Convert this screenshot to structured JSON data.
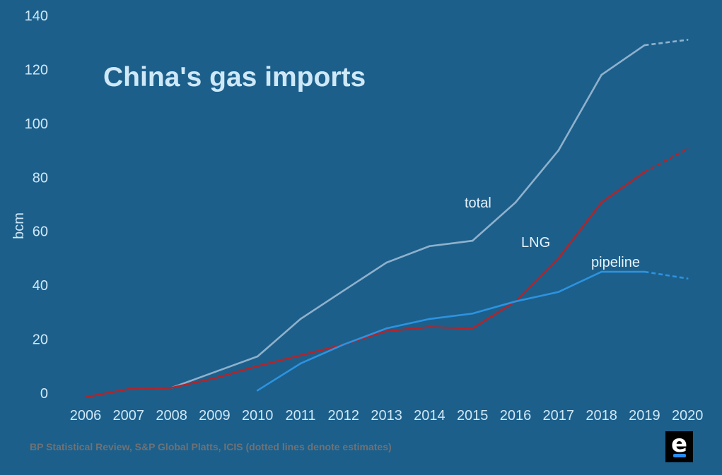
{
  "chart_data": {
    "type": "line",
    "title": "China's gas imports",
    "xlabel": "",
    "ylabel": "bcm",
    "x": [
      2006,
      2007,
      2008,
      2009,
      2010,
      2011,
      2012,
      2013,
      2014,
      2015,
      2016,
      2017,
      2018,
      2019,
      2020
    ],
    "xticks": [
      "2006",
      "2007",
      "2008",
      "2009",
      "2010",
      "2011",
      "2012",
      "2013",
      "2014",
      "2015",
      "2016",
      "2017",
      "2018",
      "2019",
      "2020"
    ],
    "yticks": [
      "0",
      "20",
      "40",
      "60",
      "80",
      "100",
      "120",
      "140"
    ],
    "ylim": [
      0,
      140
    ],
    "grid": false,
    "estimate_from": 2019,
    "series": [
      {
        "name": "total",
        "color": "#8fb1cc",
        "values": [
          null,
          null,
          2,
          7.8,
          13.6,
          27.5,
          38,
          48.4,
          54.5,
          56.5,
          70.7,
          90,
          118,
          129,
          131
        ]
      },
      {
        "name": "LNG",
        "color": "#b3242a",
        "values": [
          -1.5,
          1.5,
          2,
          5.5,
          10,
          14,
          18,
          23,
          24.5,
          24,
          34,
          50,
          70.7,
          82,
          90.5
        ]
      },
      {
        "name": "pipeline",
        "color": "#2c93e0",
        "values": [
          null,
          null,
          null,
          null,
          1,
          11,
          18,
          24,
          27.5,
          29.5,
          34,
          37.5,
          45,
          45,
          42.5
        ]
      }
    ],
    "annotations": [
      "total",
      "LNG",
      "pipeline"
    ],
    "source": "BP Statistical Review, S&P Global Platts, ICIS (dotted lines denote estimates)"
  },
  "logo": "e"
}
